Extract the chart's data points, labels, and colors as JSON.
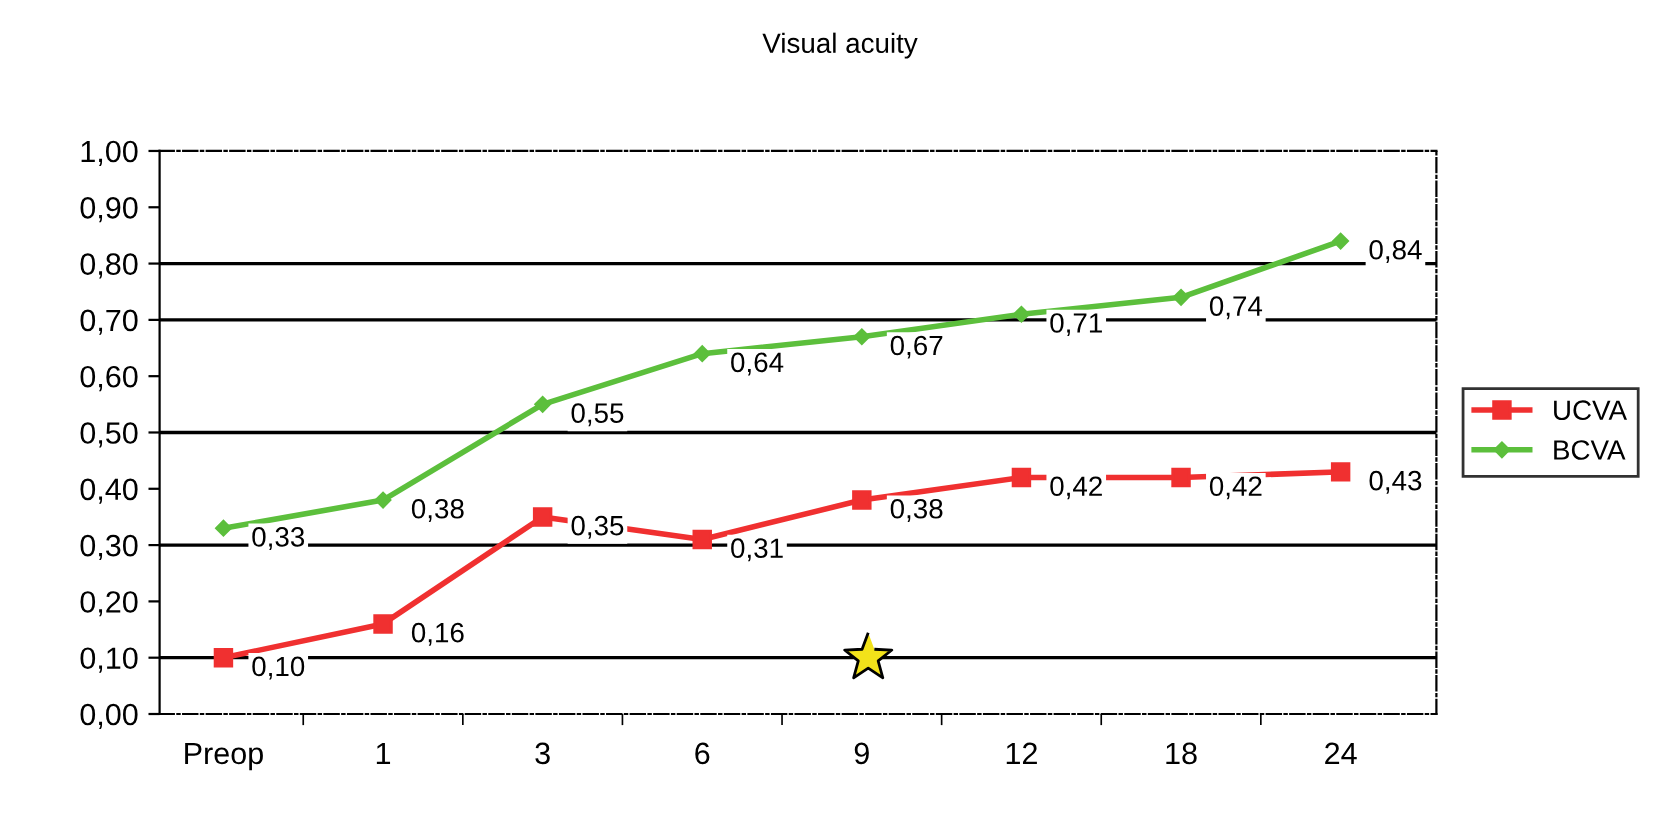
{
  "chart_data": {
    "type": "line",
    "title": "Visual acuity",
    "categories": [
      "Preop",
      "1",
      "3",
      "6",
      "9",
      "12",
      "18",
      "24"
    ],
    "series": [
      {
        "name": "UCVA",
        "color": "#f03030",
        "marker": "square",
        "values": [
          0.1,
          0.16,
          0.35,
          0.31,
          0.38,
          0.42,
          0.42,
          0.43
        ],
        "value_labels": [
          "0,10",
          "0,16",
          "0,35",
          "0,31",
          "0,38",
          "0,42",
          "0,42",
          "0,43"
        ]
      },
      {
        "name": "BCVA",
        "color": "#5cbf3c",
        "marker": "diamond",
        "values": [
          0.33,
          0.38,
          0.55,
          0.64,
          0.67,
          0.71,
          0.74,
          0.84
        ],
        "value_labels": [
          "0,33",
          "0,38",
          "0,55",
          "0,64",
          "0,67",
          "0,71",
          "0,74",
          "0,84"
        ]
      }
    ],
    "ylim": [
      0,
      1
    ],
    "yticks": [
      {
        "value": 0,
        "label": "0,00"
      },
      {
        "value": 0.1,
        "label": "0,10"
      },
      {
        "value": 0.2,
        "label": "0,20"
      },
      {
        "value": 0.3,
        "label": "0,30"
      },
      {
        "value": 0.4,
        "label": "0,40"
      },
      {
        "value": 0.5,
        "label": "0,50"
      },
      {
        "value": 0.6,
        "label": "0,60"
      },
      {
        "value": 0.7,
        "label": "0,70"
      },
      {
        "value": 0.8,
        "label": "0,80"
      },
      {
        "value": 0.9,
        "label": "0,90"
      },
      {
        "value": 1.0,
        "label": "1,00"
      }
    ],
    "ref_lines": [
      {
        "axis": "y",
        "value": 0.1
      },
      {
        "axis": "y",
        "value": 0.3
      },
      {
        "axis": "y",
        "value": 0.5
      },
      {
        "axis": "y",
        "value": 0.7
      },
      {
        "axis": "y",
        "value": 0.8
      }
    ],
    "legend": "right",
    "line_style": "solid"
  }
}
